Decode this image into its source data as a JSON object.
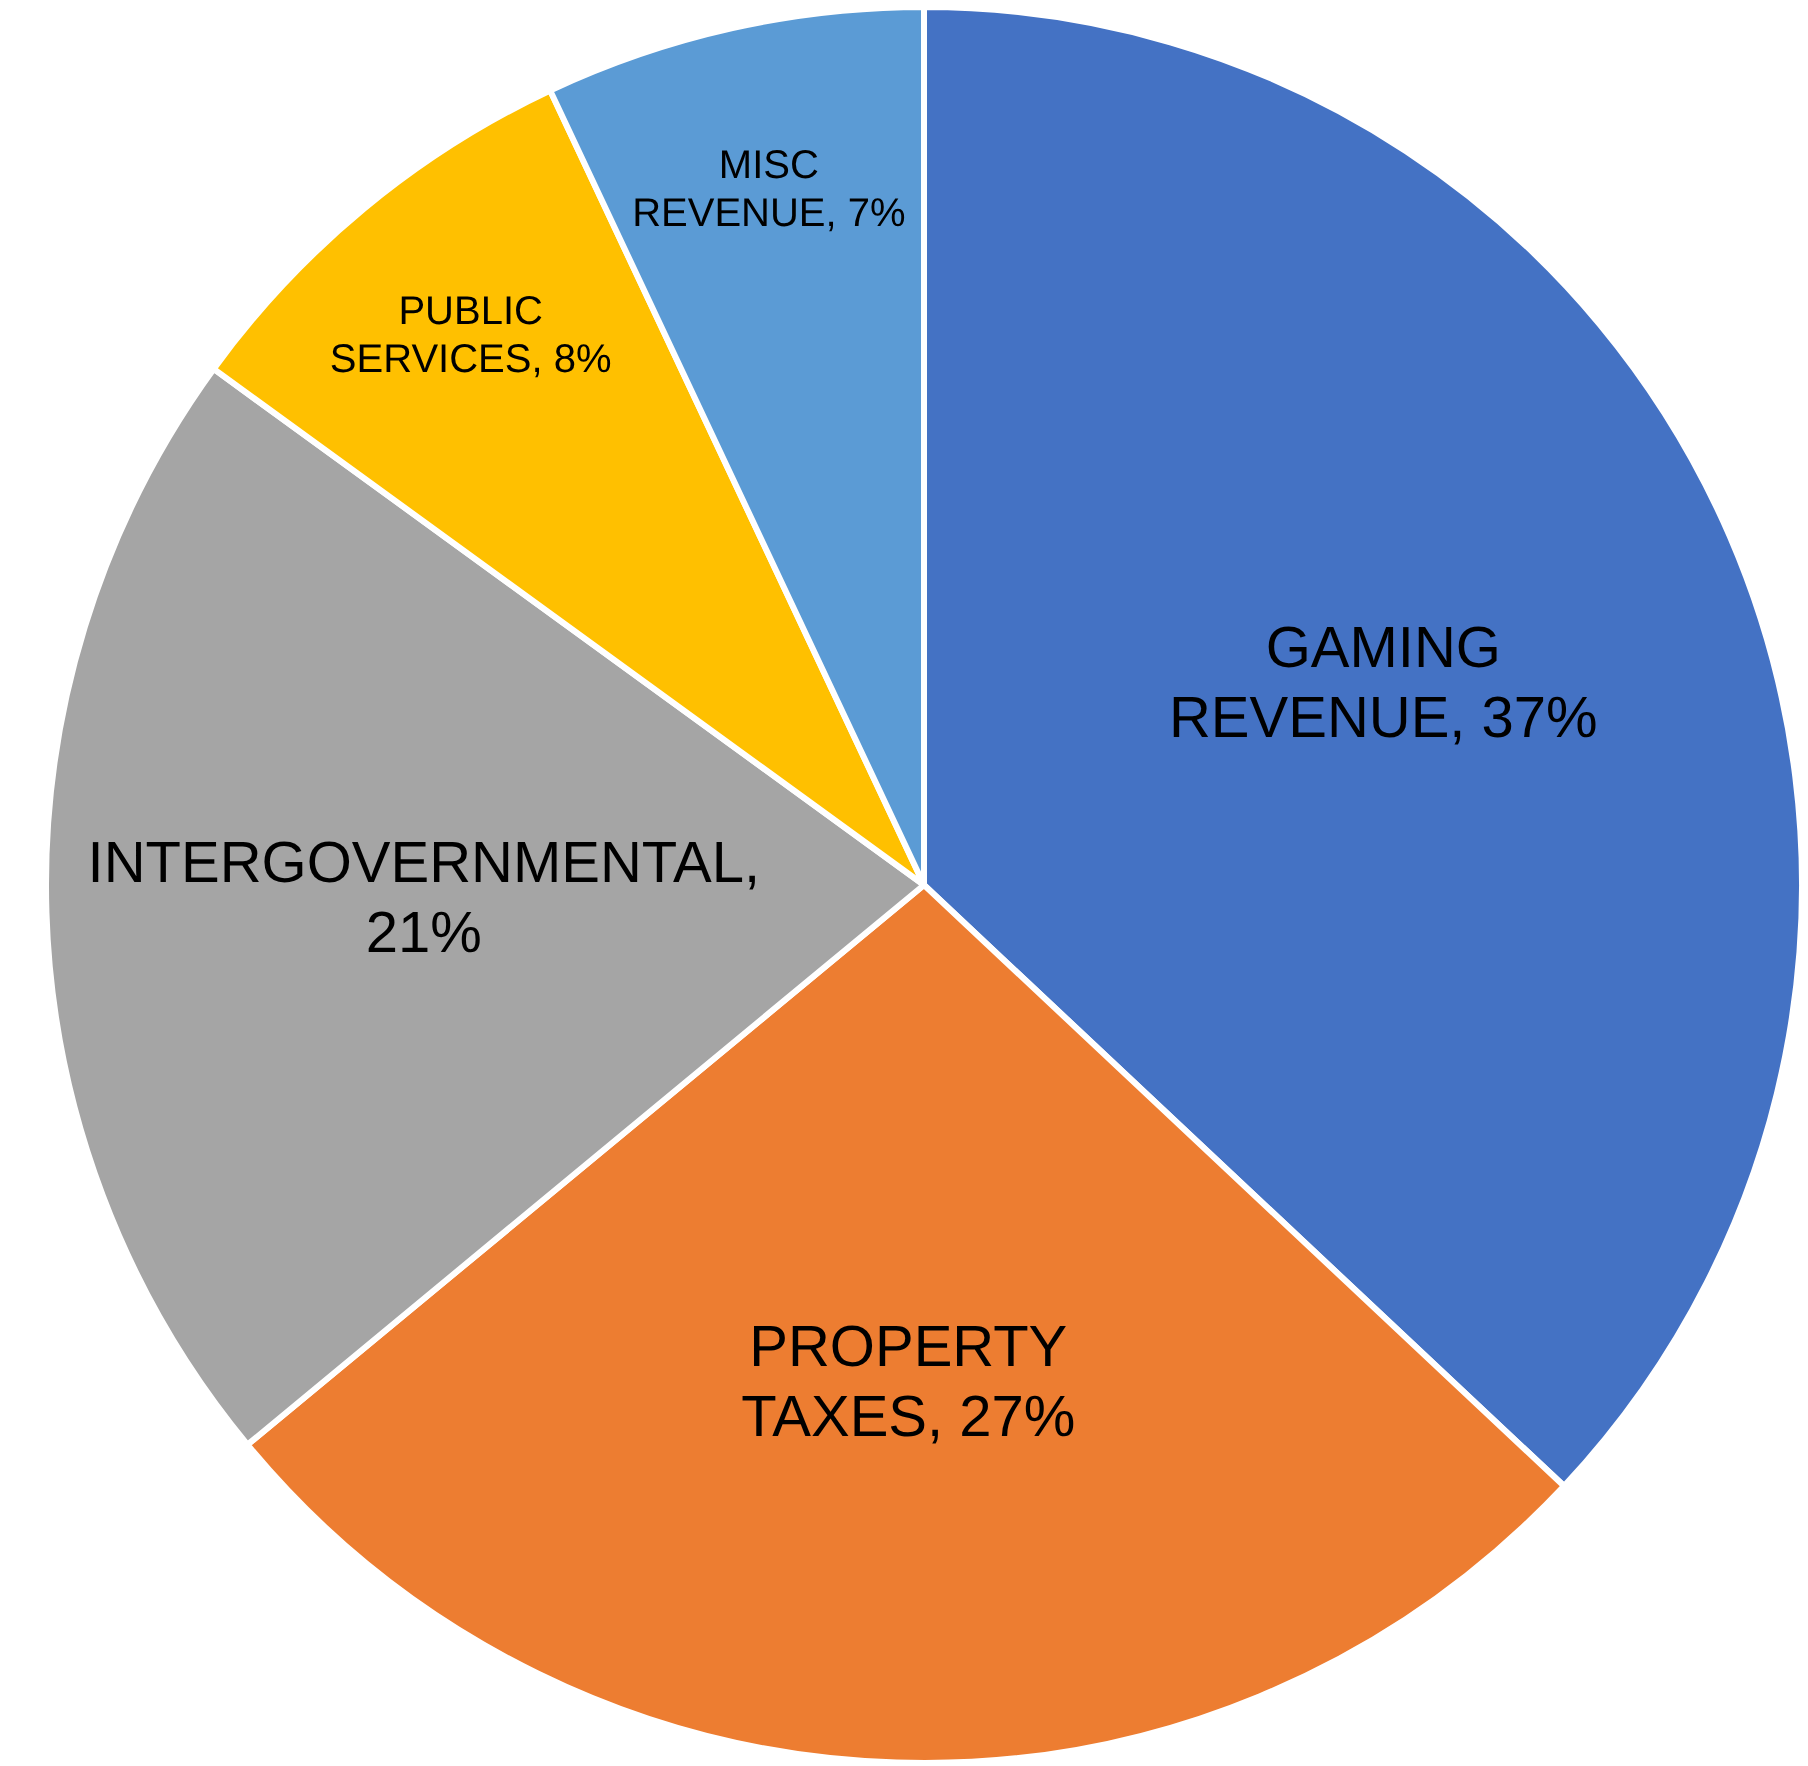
{
  "chart_data": {
    "type": "pie",
    "categories": [
      "GAMING REVENUE",
      "PROPERTY TAXES",
      "INTERGOVERNMENTAL",
      "PUBLIC SERVICES",
      "MISC REVENUE"
    ],
    "values": [
      37,
      27,
      21,
      8,
      7
    ],
    "value_labels": [
      ", 37%",
      ", 27%",
      ", 21%",
      ", 8%",
      ", 7%"
    ],
    "colors": [
      "#4472c4",
      "#ed7d31",
      "#a5a5a5",
      "#ffc000",
      "#5b9bd5"
    ],
    "legend": false
  }
}
